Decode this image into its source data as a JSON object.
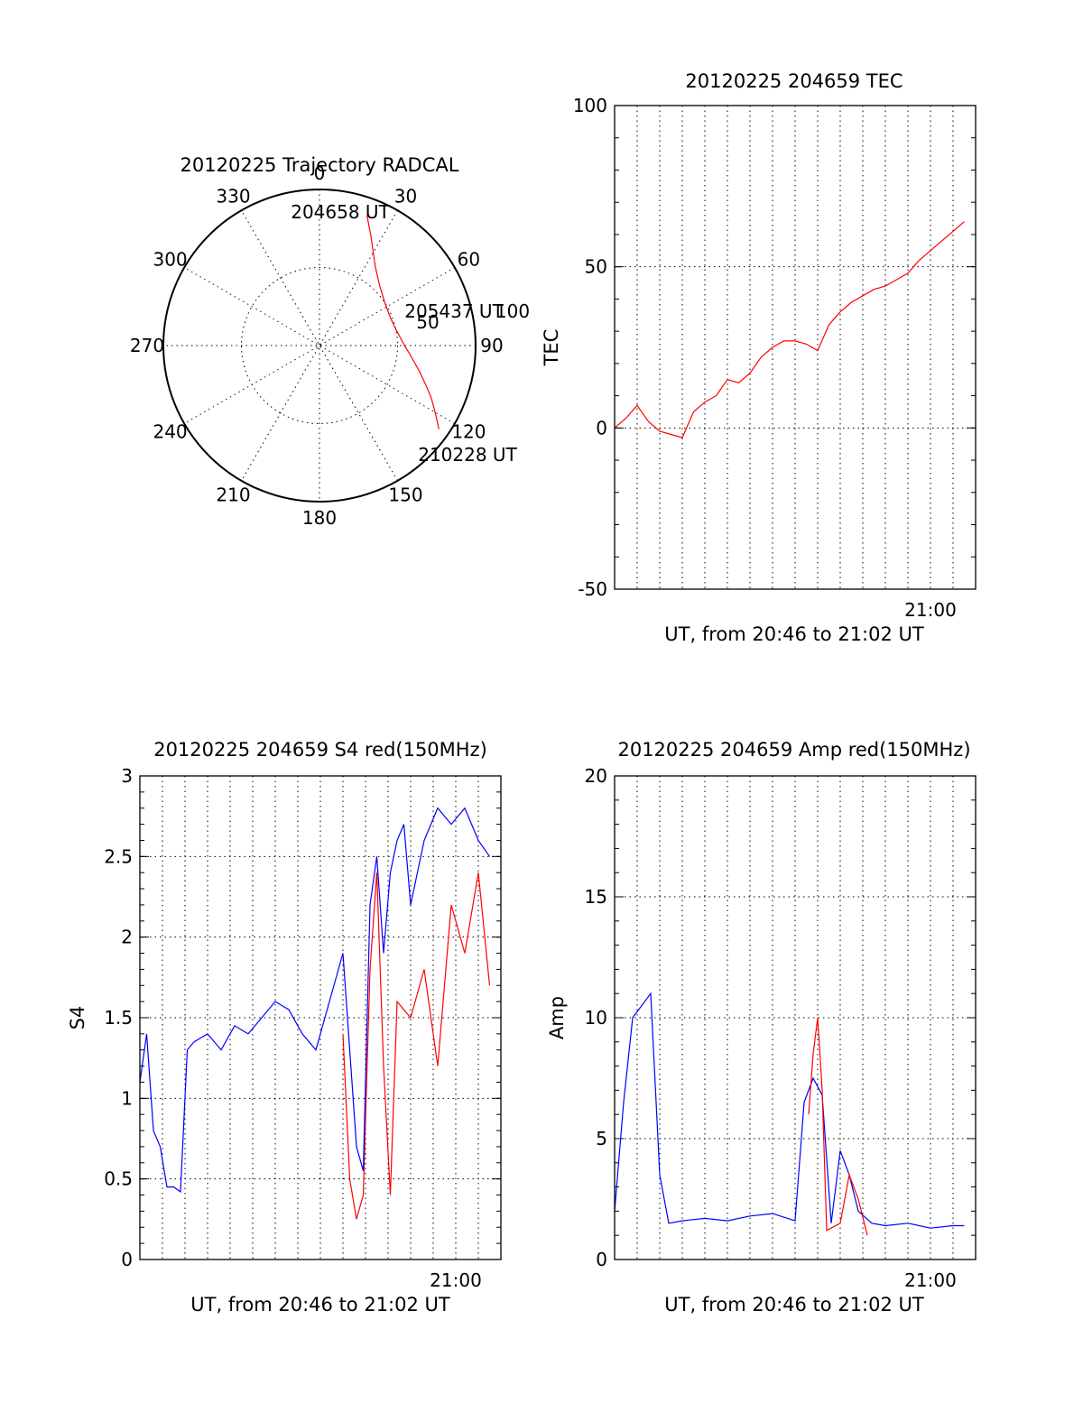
{
  "colors": {
    "red": "#ff0000",
    "blue": "#0000ff",
    "axis": "#000000"
  },
  "chart_data": [
    {
      "id": "polar",
      "type": "scatter",
      "title": "20120225 Trajectory RADCAL",
      "azimuth_labels": [
        "0",
        "30",
        "60",
        "90",
        "120",
        "150",
        "180",
        "210",
        "240",
        "270",
        "300",
        "330"
      ],
      "radial_labels": [
        "50",
        "100"
      ],
      "trajectory": {
        "azimuth_deg": [
          20,
          25,
          30,
          35,
          40,
          45,
          50,
          55,
          60,
          65,
          70,
          75,
          80,
          85,
          90,
          95,
          100,
          105,
          110,
          115,
          120,
          125
        ],
        "zenith_deg": [
          80,
          70,
          62,
          56,
          52,
          49,
          47,
          45.5,
          44.5,
          44,
          44,
          44.5,
          45.5,
          47,
          49,
          52,
          55.5,
          60,
          65,
          71,
          77,
          84
        ]
      },
      "annotations": [
        "204658 UT",
        "205437 UT",
        "210228 UT"
      ]
    },
    {
      "id": "tec",
      "type": "line",
      "title": "20120225 204659 TEC",
      "ylabel": "TEC",
      "xlabel": "UT, from 20:46 to 21:02 UT",
      "ylim": [
        -50,
        100
      ],
      "yticks": [
        "-50",
        "0",
        "50",
        "100"
      ],
      "xtick_label": "21:00",
      "grid": true,
      "series": [
        {
          "color": "red",
          "x_min": [
            0,
            0.5,
            1.0,
            1.5,
            2.0,
            2.5,
            3.0,
            3.5,
            4.0,
            4.5,
            5.0,
            5.5,
            6.0,
            6.5,
            7.0,
            7.5,
            8.0,
            8.5,
            9.0,
            9.5,
            10.0,
            10.5,
            11.0,
            11.5,
            12.0,
            12.5,
            13.0,
            13.5,
            14.0,
            14.5,
            15.0,
            15.5
          ],
          "y": [
            0,
            3,
            7,
            2,
            -1,
            -2,
            -3,
            5,
            8,
            10,
            15,
            14,
            17,
            22,
            25,
            27,
            27,
            26,
            24,
            32,
            36,
            39,
            41,
            43,
            44,
            46,
            48,
            52,
            55,
            58,
            61,
            64
          ]
        }
      ]
    },
    {
      "id": "s4",
      "type": "line",
      "title": "20120225 204659 S4 red(150MHz)",
      "ylabel": "S4",
      "xlabel": "UT, from 20:46 to 21:02 UT",
      "ylim": [
        0,
        3
      ],
      "yticks": [
        "0",
        "0.5",
        "1",
        "1.5",
        "2",
        "2.5",
        "3"
      ],
      "xtick_label": "21:00",
      "grid": true,
      "series": [
        {
          "color": "blue",
          "x_min": [
            0,
            0.3,
            0.6,
            0.9,
            1.2,
            1.5,
            1.8,
            2.1,
            2.4,
            3.0,
            3.6,
            4.2,
            4.8,
            5.4,
            6.0,
            6.6,
            7.2,
            7.8,
            8.4,
            9.0,
            9.3,
            9.6,
            9.9,
            10.2,
            10.5,
            10.8,
            11.1,
            11.4,
            11.7,
            12.0,
            12.6,
            13.2,
            13.8,
            14.4,
            15.0,
            15.5
          ],
          "y": [
            1.1,
            1.4,
            0.8,
            0.7,
            0.45,
            0.45,
            0.42,
            1.3,
            1.35,
            1.4,
            1.3,
            1.45,
            1.4,
            1.5,
            1.6,
            1.55,
            1.4,
            1.3,
            1.6,
            1.9,
            1.3,
            0.7,
            0.55,
            2.2,
            2.5,
            1.9,
            2.4,
            2.6,
            2.7,
            2.2,
            2.6,
            2.8,
            2.7,
            2.8,
            2.6,
            2.5
          ]
        },
        {
          "color": "red",
          "x_min": [
            9.0,
            9.3,
            9.6,
            9.9,
            10.2,
            10.5,
            10.8,
            11.1,
            11.4,
            12.0,
            12.6,
            13.2,
            13.8,
            14.4,
            15.0,
            15.5
          ],
          "y": [
            1.4,
            0.5,
            0.25,
            0.4,
            1.8,
            2.4,
            1.2,
            0.4,
            1.6,
            1.5,
            1.8,
            1.2,
            2.2,
            1.9,
            2.4,
            1.7
          ]
        }
      ]
    },
    {
      "id": "amp",
      "type": "line",
      "title": "20120225 204659 Amp red(150MHz)",
      "ylabel": "Amp",
      "xlabel": "UT, from 20:46 to 21:02 UT",
      "ylim": [
        0,
        20
      ],
      "yticks": [
        "0",
        "5",
        "10",
        "15",
        "20"
      ],
      "xtick_label": "21:00",
      "grid": true,
      "series": [
        {
          "color": "red",
          "x_min": [
            8.6,
            8.8,
            9.0,
            9.2,
            9.4,
            10.0,
            10.4,
            10.8,
            11.2
          ],
          "y": [
            6.0,
            8.5,
            10.0,
            7.0,
            1.2,
            1.5,
            3.5,
            2.5,
            1.0
          ]
        },
        {
          "color": "blue",
          "x_min": [
            0,
            0.4,
            0.8,
            1.2,
            1.6,
            2.0,
            2.4,
            3.0,
            4.0,
            5.0,
            6.0,
            7.0,
            8.0,
            8.4,
            8.8,
            9.2,
            9.6,
            10.0,
            10.4,
            10.8,
            11.4,
            12.0,
            13.0,
            14.0,
            15.0,
            15.5
          ],
          "y": [
            2.0,
            6.5,
            10.0,
            10.5,
            11.0,
            3.5,
            1.5,
            1.6,
            1.7,
            1.6,
            1.8,
            1.9,
            1.6,
            6.5,
            7.5,
            6.8,
            1.5,
            4.5,
            3.5,
            2.0,
            1.5,
            1.4,
            1.5,
            1.3,
            1.4,
            1.4
          ]
        }
      ]
    }
  ]
}
